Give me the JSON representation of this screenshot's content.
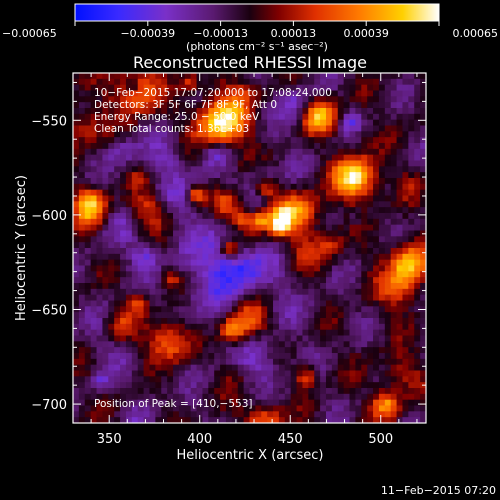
{
  "chart_data": {
    "type": "heatmap",
    "title": "Reconstructed RHESSI Image",
    "xlabel": "Heliocentric X (arcsec)",
    "ylabel": "Heliocentric Y (arcsec)",
    "xlim": [
      330,
      525
    ],
    "ylim": [
      -710,
      -525
    ],
    "x_ticks": [
      350,
      400,
      450,
      500
    ],
    "y_ticks": [
      -550,
      -600,
      -650,
      -700
    ],
    "x_tick_labels": [
      "350",
      "400",
      "450",
      "500"
    ],
    "y_tick_labels": [
      "−550",
      "−600",
      "−650",
      "−700"
    ],
    "colorbar": {
      "min": -0.00065,
      "max": 0.00065,
      "ticks": [
        -0.00065,
        -0.00039,
        -0.00013,
        0.00013,
        0.00039,
        0.00065
      ],
      "tick_labels": [
        "−0.00065",
        "−0.00039",
        "−0.00013",
        "0.00013",
        "0.00039",
        "0.00065"
      ],
      "unit_label": "(photons cm⁻² s⁻¹ asec⁻²)",
      "colormap": "rainbow-blue-black-red-yellow-white"
    },
    "annotations": [
      "10−Feb−2015 17:07:20.000 to 17:08:24.000",
      "Detectors: 3F 5F 6F 7F 8F 9F, Att 0",
      "Energy Range: 25.0 − 50.0 keV",
      "Clean     Total counts: 1.36E+03"
    ],
    "peak_label": "Position of Peak = [410,−553]",
    "peak_position": [
      410,
      -553
    ],
    "footer_timestamp": "11−Feb−2015 07:20",
    "colors": {
      "background": "#000000",
      "text": "#ffffff",
      "axes": "#ffffff"
    }
  }
}
